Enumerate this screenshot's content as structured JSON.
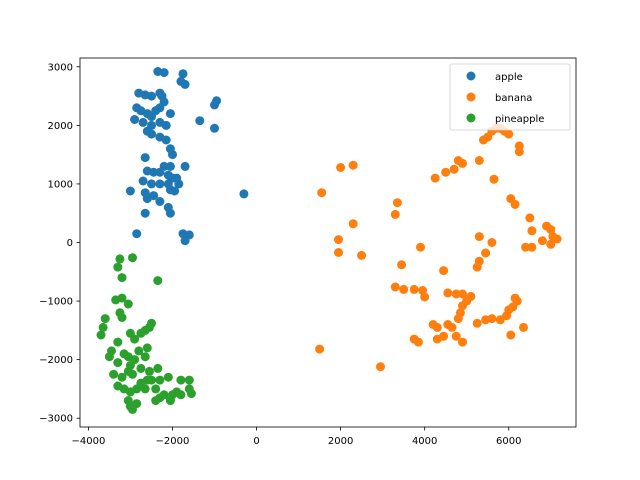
{
  "chart_data": {
    "type": "scatter",
    "title": "",
    "xlabel": "",
    "ylabel": "",
    "xlim": [
      -4200,
      7600
    ],
    "ylim": [
      -3150,
      3150
    ],
    "xticks": [
      -4000,
      -2000,
      0,
      2000,
      4000,
      6000
    ],
    "xtick_labels": [
      "−4000",
      "−2000",
      "0",
      "2000",
      "4000",
      "6000"
    ],
    "yticks": [
      -3000,
      -2000,
      -1000,
      0,
      1000,
      2000,
      3000
    ],
    "ytick_labels": [
      "−3000",
      "−2000",
      "−1000",
      "0",
      "1000",
      "2000",
      "3000"
    ],
    "grid": false,
    "legend_position": "top-right",
    "series": [
      {
        "name": "apple",
        "color": "#1f77b4",
        "points": [
          [
            -2350,
            2920
          ],
          [
            -2200,
            2900
          ],
          [
            -1750,
            2880
          ],
          [
            -1800,
            2750
          ],
          [
            -1700,
            2700
          ],
          [
            -2800,
            2550
          ],
          [
            -2650,
            2520
          ],
          [
            -2500,
            2500
          ],
          [
            -2300,
            2550
          ],
          [
            -2250,
            2500
          ],
          [
            -950,
            2420
          ],
          [
            -1000,
            2350
          ],
          [
            -2850,
            2300
          ],
          [
            -2750,
            2250
          ],
          [
            -2600,
            2200
          ],
          [
            -2500,
            2150
          ],
          [
            -2400,
            2250
          ],
          [
            -2300,
            2300
          ],
          [
            -2200,
            2400
          ],
          [
            -2050,
            2200
          ],
          [
            -1350,
            2080
          ],
          [
            -2900,
            2100
          ],
          [
            -2700,
            2050
          ],
          [
            -2500,
            2000
          ],
          [
            -2300,
            2050
          ],
          [
            -2150,
            2000
          ],
          [
            -1000,
            1950
          ],
          [
            -2600,
            1900
          ],
          [
            -2500,
            1850
          ],
          [
            -2300,
            1800
          ],
          [
            -2150,
            1750
          ],
          [
            -2050,
            1600
          ],
          [
            -2000,
            1500
          ],
          [
            -2650,
            1450
          ],
          [
            -2200,
            1300
          ],
          [
            -2050,
            1300
          ],
          [
            -1700,
            1300
          ],
          [
            -2600,
            1220
          ],
          [
            -2450,
            1200
          ],
          [
            -2300,
            1200
          ],
          [
            -2100,
            1150
          ],
          [
            -2000,
            1100
          ],
          [
            -1900,
            1100
          ],
          [
            -1850,
            1000
          ],
          [
            -2700,
            1050
          ],
          [
            -2500,
            1000
          ],
          [
            -2300,
            1000
          ],
          [
            -2100,
            1000
          ],
          [
            -2050,
            900
          ],
          [
            -3000,
            880
          ],
          [
            -2650,
            850
          ],
          [
            -2600,
            750
          ],
          [
            -2450,
            800
          ],
          [
            -2300,
            700
          ],
          [
            -1950,
            880
          ],
          [
            -2100,
            600
          ],
          [
            -2050,
            500
          ],
          [
            -2650,
            500
          ],
          [
            -300,
            830
          ],
          [
            -2850,
            150
          ],
          [
            -1750,
            150
          ],
          [
            -1600,
            130
          ],
          [
            -1700,
            30
          ]
        ]
      },
      {
        "name": "banana",
        "color": "#ff7f0e",
        "points": [
          [
            5700,
            1950
          ],
          [
            5800,
            1950
          ],
          [
            5600,
            1900
          ],
          [
            5900,
            1900
          ],
          [
            6000,
            1850
          ],
          [
            5500,
            1800
          ],
          [
            5400,
            1750
          ],
          [
            6250,
            1650
          ],
          [
            6250,
            1550
          ],
          [
            5300,
            1400
          ],
          [
            4800,
            1400
          ],
          [
            4900,
            1350
          ],
          [
            4700,
            1250
          ],
          [
            4500,
            1200
          ],
          [
            4250,
            1100
          ],
          [
            5650,
            1080
          ],
          [
            2300,
            1320
          ],
          [
            2000,
            1280
          ],
          [
            1550,
            850
          ],
          [
            3350,
            680
          ],
          [
            3300,
            480
          ],
          [
            6050,
            750
          ],
          [
            6150,
            650
          ],
          [
            6500,
            420
          ],
          [
            6900,
            280
          ],
          [
            7000,
            220
          ],
          [
            7050,
            100
          ],
          [
            7150,
            60
          ],
          [
            7000,
            -30
          ],
          [
            6550,
            200
          ],
          [
            6550,
            -80
          ],
          [
            6400,
            -80
          ],
          [
            6800,
            30
          ],
          [
            2300,
            320
          ],
          [
            1950,
            50
          ],
          [
            1950,
            -170
          ],
          [
            2500,
            -220
          ],
          [
            3900,
            -80
          ],
          [
            5300,
            100
          ],
          [
            5600,
            0
          ],
          [
            5450,
            -180
          ],
          [
            5300,
            -320
          ],
          [
            5250,
            -420
          ],
          [
            3450,
            -380
          ],
          [
            4450,
            -480
          ],
          [
            3300,
            -760
          ],
          [
            3500,
            -800
          ],
          [
            3750,
            -800
          ],
          [
            3950,
            -820
          ],
          [
            4000,
            -930
          ],
          [
            4550,
            -860
          ],
          [
            4750,
            -880
          ],
          [
            4900,
            -880
          ],
          [
            5100,
            -920
          ],
          [
            5000,
            -1000
          ],
          [
            4900,
            -1080
          ],
          [
            4850,
            -1200
          ],
          [
            4800,
            -1300
          ],
          [
            4200,
            -1400
          ],
          [
            4300,
            -1450
          ],
          [
            4550,
            -1400
          ],
          [
            4650,
            -1450
          ],
          [
            4750,
            -1600
          ],
          [
            4900,
            -1700
          ],
          [
            4450,
            -1600
          ],
          [
            4300,
            -1650
          ],
          [
            3750,
            -1650
          ],
          [
            3850,
            -1700
          ],
          [
            5250,
            -1380
          ],
          [
            5450,
            -1320
          ],
          [
            5600,
            -1300
          ],
          [
            5800,
            -1320
          ],
          [
            5950,
            -1250
          ],
          [
            6000,
            -1150
          ],
          [
            6100,
            -1100
          ],
          [
            6150,
            -950
          ],
          [
            6200,
            -1000
          ],
          [
            6350,
            -1450
          ],
          [
            6050,
            -1580
          ],
          [
            1500,
            -1820
          ],
          [
            2950,
            -2120
          ]
        ]
      },
      {
        "name": "pineapple",
        "color": "#2ca02c",
        "points": [
          [
            -3250,
            -280
          ],
          [
            -2950,
            -260
          ],
          [
            -3300,
            -420
          ],
          [
            -3200,
            -600
          ],
          [
            -2350,
            -650
          ],
          [
            -3350,
            -980
          ],
          [
            -3200,
            -950
          ],
          [
            -3050,
            -1050
          ],
          [
            -3250,
            -1200
          ],
          [
            -3200,
            -1280
          ],
          [
            -3600,
            -1300
          ],
          [
            -3650,
            -1450
          ],
          [
            -3700,
            -1580
          ],
          [
            -3000,
            -1550
          ],
          [
            -2750,
            -1550
          ],
          [
            -2500,
            -1380
          ],
          [
            -2550,
            -1450
          ],
          [
            -2650,
            -1500
          ],
          [
            -2900,
            -1650
          ],
          [
            -3300,
            -1700
          ],
          [
            -3450,
            -1850
          ],
          [
            -3500,
            -1950
          ],
          [
            -3150,
            -1900
          ],
          [
            -3050,
            -1950
          ],
          [
            -2800,
            -1850
          ],
          [
            -2600,
            -1800
          ],
          [
            -2650,
            -1950
          ],
          [
            -2900,
            -2000
          ],
          [
            -3000,
            -2100
          ],
          [
            -3300,
            -2050
          ],
          [
            -3400,
            -2250
          ],
          [
            -3200,
            -2300
          ],
          [
            -3050,
            -2200
          ],
          [
            -2950,
            -2250
          ],
          [
            -2750,
            -2150
          ],
          [
            -2550,
            -2200
          ],
          [
            -2350,
            -2150
          ],
          [
            -2600,
            -2350
          ],
          [
            -2750,
            -2400
          ],
          [
            -2500,
            -2350
          ],
          [
            -2300,
            -2350
          ],
          [
            -2100,
            -2300
          ],
          [
            -1800,
            -2350
          ],
          [
            -1600,
            -2350
          ],
          [
            -3300,
            -2450
          ],
          [
            -3150,
            -2500
          ],
          [
            -3000,
            -2550
          ],
          [
            -2850,
            -2500
          ],
          [
            -2650,
            -2500
          ],
          [
            -2400,
            -2500
          ],
          [
            -2200,
            -2600
          ],
          [
            -2000,
            -2600
          ],
          [
            -1800,
            -2600
          ],
          [
            -1600,
            -2500
          ],
          [
            -1550,
            -2580
          ],
          [
            -3050,
            -2700
          ],
          [
            -3000,
            -2800
          ],
          [
            -2950,
            -2850
          ],
          [
            -2850,
            -2750
          ],
          [
            -2400,
            -2700
          ],
          [
            -2300,
            -2650
          ],
          [
            -2050,
            -2700
          ],
          [
            -1900,
            -2550
          ]
        ]
      }
    ]
  }
}
